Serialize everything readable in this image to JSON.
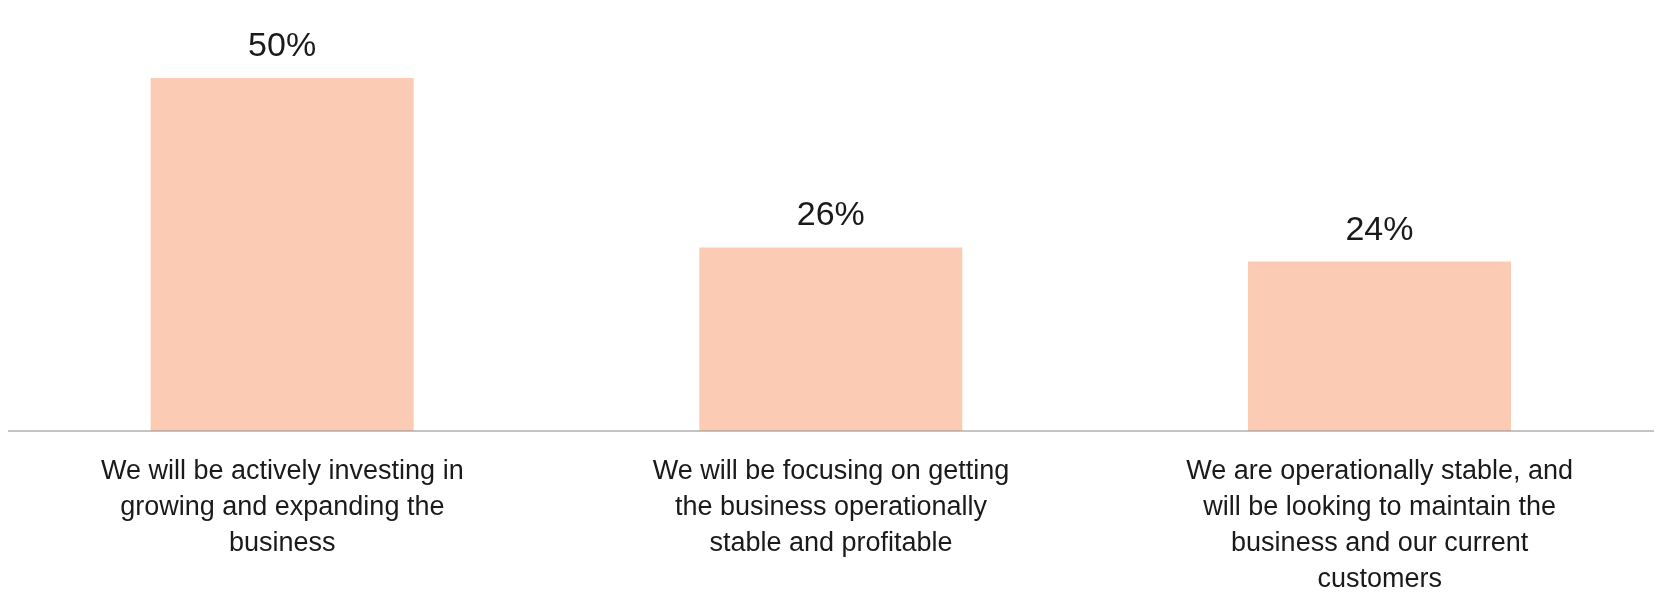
{
  "chart_data": {
    "type": "bar",
    "categories": [
      "We will be actively investing in growing and expanding the business",
      "We will be focusing on getting the business operationally stable and profitable",
      "We are operationally stable, and will be looking to maintain the business and our current customers"
    ],
    "values": [
      50,
      26,
      24
    ],
    "value_labels": [
      "50%",
      "26%",
      "24%"
    ],
    "color": "#fccbb4",
    "grid": false,
    "legend": false
  }
}
